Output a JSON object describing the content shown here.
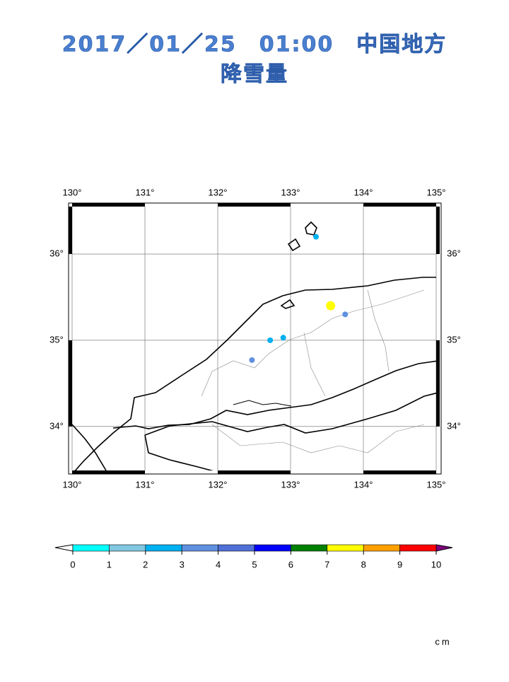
{
  "chart_data": {
    "type": "map",
    "title": "2017／01／25　01:00　中国地方",
    "subtitle": "降雪量",
    "xlim": [
      130,
      135
    ],
    "ylim": [
      33.49,
      36.55
    ],
    "xticks": [
      {
        "value": 130,
        "label": "130°"
      },
      {
        "value": 131,
        "label": "131°"
      },
      {
        "value": 132,
        "label": "132°"
      },
      {
        "value": 133,
        "label": "133°"
      },
      {
        "value": 134,
        "label": "134°"
      },
      {
        "value": 135,
        "label": "135°"
      }
    ],
    "yticks": [
      {
        "value": 34,
        "label": "34°"
      },
      {
        "value": 35,
        "label": "35°"
      },
      {
        "value": 36,
        "label": "36°"
      }
    ],
    "grid": true,
    "points": {
      "lon": [
        133.35,
        133.55,
        133.75,
        132.9,
        132.72,
        132.47
      ],
      "lat": [
        36.2,
        35.4,
        35.3,
        35.03,
        35.0,
        34.77
      ],
      "values": [
        2.5,
        7.5,
        3.5,
        2.5,
        2.5,
        3.5
      ]
    },
    "colorbar": {
      "ticks": [
        0,
        1,
        2,
        3,
        4,
        5,
        6,
        7,
        8,
        9,
        10
      ],
      "colors": [
        "#00ffff",
        "#80c8e0",
        "#00b0f0",
        "#6090e0",
        "#5070d8",
        "#0000ff",
        "#008000",
        "#ffff00",
        "#ffa000",
        "#ff0000"
      ],
      "under_color": "#ffffff",
      "over_color": "#800080",
      "unit": "cm"
    }
  }
}
